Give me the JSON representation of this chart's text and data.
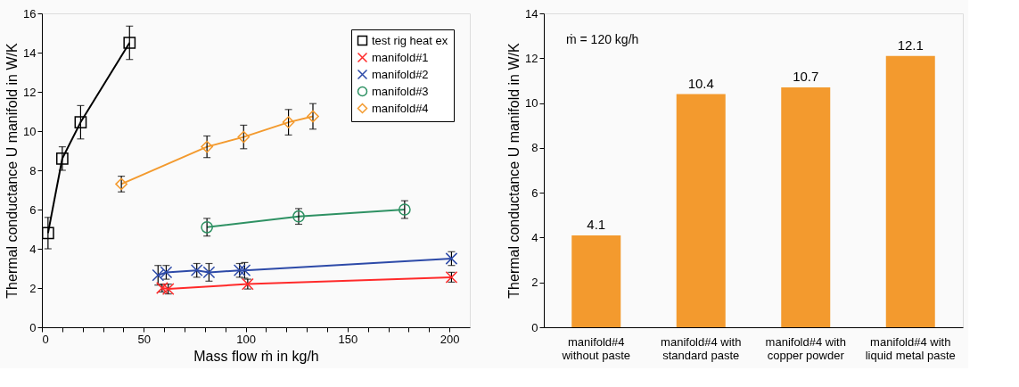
{
  "chart_data": [
    {
      "type": "line",
      "xlabel": "Mass flow ṁ in kg/h",
      "ylabel": "Thermal conductance U manifold in W/K",
      "xlim": [
        0,
        210
      ],
      "ylim": [
        0,
        16
      ],
      "xticks": [
        0,
        {
          "value": 10,
          "label": null
        },
        {
          "value": 20,
          "label": null
        },
        {
          "value": 30,
          "label": null
        },
        {
          "value": 40,
          "label": null
        },
        50,
        {
          "value": 60,
          "label": null
        },
        {
          "value": 70,
          "label": null
        },
        {
          "value": 80,
          "label": null
        },
        {
          "value": 90,
          "label": null
        },
        100,
        {
          "value": 110,
          "label": null
        },
        {
          "value": 120,
          "label": null
        },
        {
          "value": 130,
          "label": null
        },
        {
          "value": 140,
          "label": null
        },
        150,
        {
          "value": 160,
          "label": null
        },
        {
          "value": 170,
          "label": null
        },
        {
          "value": 180,
          "label": null
        },
        {
          "value": 190,
          "label": null
        },
        200
      ],
      "yticks": [
        0,
        2,
        4,
        6,
        8,
        10,
        12,
        14,
        16
      ],
      "grid": false,
      "legend": "top right",
      "line_style": "solid",
      "series": [
        {
          "name": "test rig heat ex",
          "color": "#000000",
          "marker": "square",
          "x": [
            3,
            10,
            19,
            43
          ],
          "values": [
            4.8,
            8.6,
            10.45,
            14.5
          ],
          "errors": [
            0.8,
            0.6,
            0.85,
            0.85
          ]
        },
        {
          "name": "manifold#1",
          "color": "#ff2a2a",
          "marker": "cross",
          "x": [
            59,
            62,
            101,
            201
          ],
          "values": [
            2.0,
            1.95,
            2.2,
            2.55
          ],
          "errors": [
            0.2,
            0.25,
            0.25,
            0.25
          ]
        },
        {
          "name": "manifold#2",
          "color": "#2d4aa8",
          "marker": "cross",
          "x": [
            57,
            61,
            76,
            82,
            97,
            99.5,
            201
          ],
          "values": [
            2.65,
            2.8,
            2.9,
            2.8,
            2.9,
            2.9,
            3.5
          ],
          "errors": [
            0.5,
            0.35,
            0.35,
            0.45,
            0.35,
            0.4,
            0.35
          ]
        },
        {
          "name": "manifold#3",
          "color": "#2e9163",
          "marker": "circle",
          "x": [
            81,
            126,
            178
          ],
          "values": [
            5.1,
            5.65,
            6.0
          ],
          "errors": [
            0.45,
            0.4,
            0.45
          ]
        },
        {
          "name": "manifold#4",
          "color": "#f39a2e",
          "marker": "diamond",
          "x": [
            39,
            81,
            99,
            121,
            133
          ],
          "values": [
            7.3,
            9.2,
            9.7,
            10.45,
            10.75
          ],
          "errors": [
            0.4,
            0.55,
            0.6,
            0.65,
            0.65
          ]
        }
      ]
    },
    {
      "type": "bar",
      "ylabel": "Thermal conductance U manifold in W/K",
      "ylim": [
        0,
        14
      ],
      "yticks": [
        0,
        2,
        4,
        6,
        8,
        10,
        12,
        14
      ],
      "grid": false,
      "data_labels": true,
      "categories": [
        "manifold#4\nwithout paste",
        "manifold#4 with\nstandard paste",
        "manifold#4 with\ncopper powder",
        "manifold#4 with\nliquid metal paste"
      ],
      "values": [
        4.1,
        10.4,
        10.7,
        12.1
      ],
      "color": "#f39a2e",
      "annotations": [
        "ṁ = 120 kg/h"
      ]
    }
  ]
}
